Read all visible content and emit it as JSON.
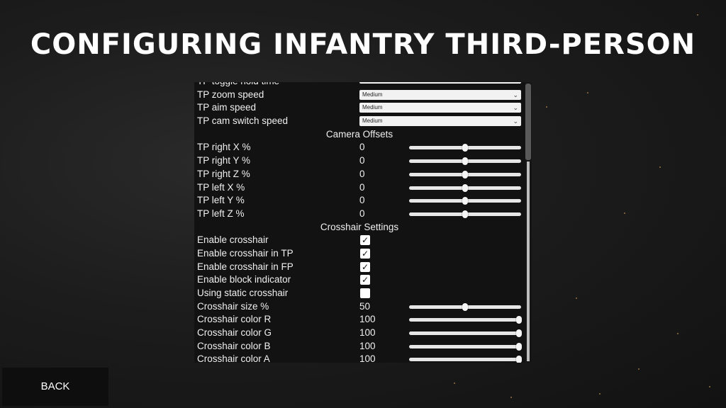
{
  "title": "CONFIGURING INFANTRY THIRD-PERSON",
  "back_label": "BACK",
  "rows": [
    {
      "type": "bar",
      "label": "TP toggle hold time"
    },
    {
      "type": "select",
      "label": "TP zoom speed",
      "value": "Medium"
    },
    {
      "type": "select",
      "label": "TP aim speed",
      "value": "Medium"
    },
    {
      "type": "select",
      "label": "TP cam switch speed",
      "value": "Medium"
    },
    {
      "type": "section",
      "label": "Camera Offsets"
    },
    {
      "type": "slider",
      "label": "TP right X %",
      "value": "0",
      "fraction": 0.5
    },
    {
      "type": "slider",
      "label": "TP right Y %",
      "value": "0",
      "fraction": 0.5
    },
    {
      "type": "slider",
      "label": "TP right Z %",
      "value": "0",
      "fraction": 0.5
    },
    {
      "type": "slider",
      "label": "TP left X %",
      "value": "0",
      "fraction": 0.5
    },
    {
      "type": "slider",
      "label": "TP left Y %",
      "value": "0",
      "fraction": 0.5
    },
    {
      "type": "slider",
      "label": "TP left Z %",
      "value": "0",
      "fraction": 0.5
    },
    {
      "type": "section",
      "label": "Crosshair Settings"
    },
    {
      "type": "check",
      "label": "Enable crosshair",
      "checked": true
    },
    {
      "type": "check",
      "label": "Enable crosshair in TP",
      "checked": true
    },
    {
      "type": "check",
      "label": "Enable crosshair in FP",
      "checked": true
    },
    {
      "type": "check",
      "label": "Enable block indicator",
      "checked": true
    },
    {
      "type": "check",
      "label": "Using static crosshair",
      "checked": false
    },
    {
      "type": "slider",
      "label": "Crosshair size %",
      "value": "50",
      "fraction": 0.5
    },
    {
      "type": "slider",
      "label": "Crosshair color R",
      "value": "100",
      "fraction": 0.98
    },
    {
      "type": "slider",
      "label": "Crosshair color G",
      "value": "100",
      "fraction": 0.98
    },
    {
      "type": "slider",
      "label": "Crosshair color B",
      "value": "100",
      "fraction": 0.98
    },
    {
      "type": "slider",
      "label": "Crosshair color A",
      "value": "100",
      "fraction": 0.98
    }
  ],
  "icons": {
    "check": "checkmark-icon",
    "chevron": "chevron-down-icon"
  }
}
